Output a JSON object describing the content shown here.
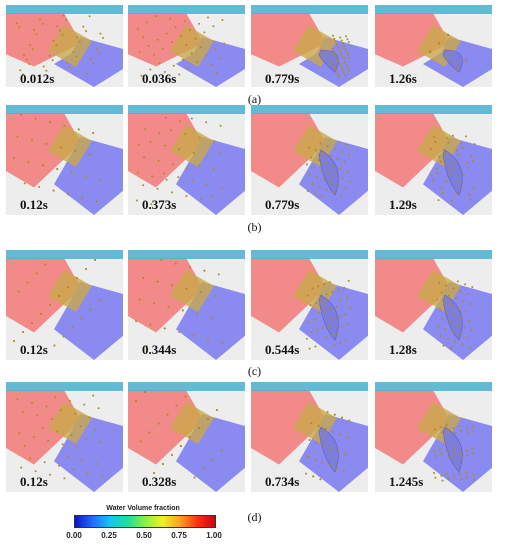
{
  "rows": [
    {
      "label": "(a)",
      "times": [
        "0.012s",
        "0.036s",
        "0.779s",
        "1.26s"
      ]
    },
    {
      "label": "(b)",
      "times": [
        "0.12s",
        "0.373s",
        "0.779s",
        "1.29s"
      ]
    },
    {
      "label": "(c)",
      "times": [
        "0.12s",
        "0.344s",
        "0.544s",
        "1.28s"
      ]
    },
    {
      "label": "(d)",
      "times": [
        "0.12s",
        "0.328s",
        "0.734s",
        "1.245s"
      ]
    }
  ],
  "legend": {
    "title": "Water Volume fraction",
    "ticks": [
      "0.00",
      "0.25",
      "0.50",
      "0.75",
      "1.00"
    ],
    "colors": [
      "#0a14c8",
      "#10c8f0",
      "#8af040",
      "#ffa020",
      "#d00010"
    ]
  },
  "colors": {
    "water": "#f28a8a",
    "air": "#8a8af0",
    "free_surface": "#4ab0d0",
    "particle": "#b08a20"
  }
}
